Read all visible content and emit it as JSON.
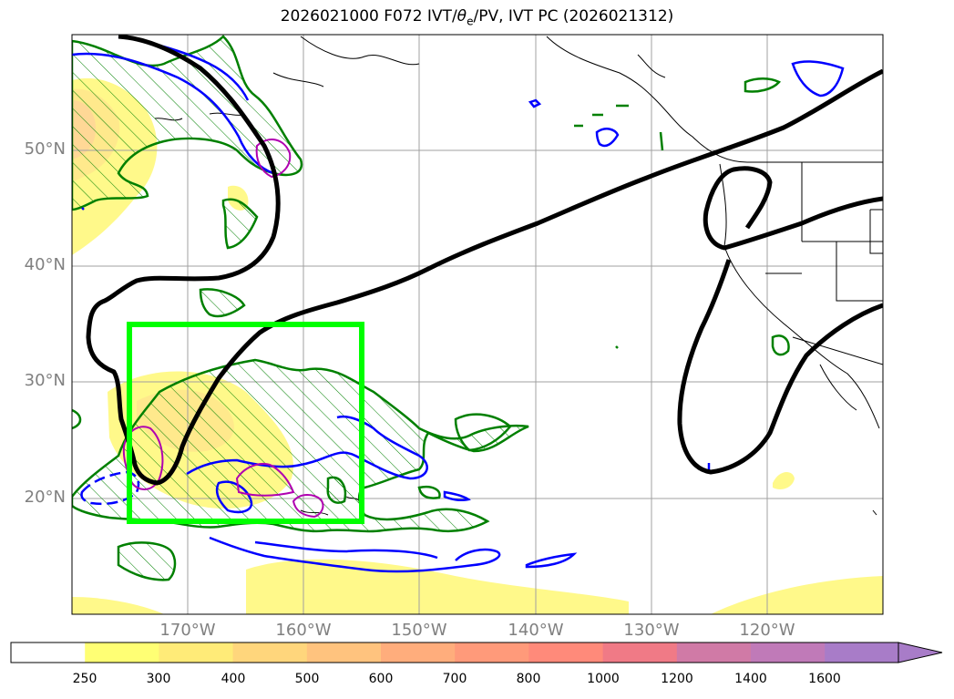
{
  "title": {
    "prefix": "2026021000 F072 IVT/",
    "theta": "θ",
    "theta_sub": "e",
    "suffix": "/PV, IVT PC (2026021312)"
  },
  "map": {
    "lat_labels": [
      "50°N",
      "40°N",
      "30°N",
      "20°N"
    ],
    "lon_labels": [
      "170°W",
      "160°W",
      "150°W",
      "140°W",
      "130°W",
      "120°W"
    ]
  },
  "legend": {
    "ivt_levels": [
      "250",
      "300",
      "400",
      "500",
      "600",
      "700",
      "800",
      "1000",
      "1200",
      "1400",
      "1600"
    ],
    "colors": [
      "#ffffff",
      "#ffff74",
      "#ffeb78",
      "#ffd67c",
      "#ffc37e",
      "#ffad7c",
      "#ff9a7a",
      "#ff8a7a",
      "#f07a86",
      "#d07aa6",
      "#c07ab8",
      "#a87cc8"
    ]
  },
  "colors": {
    "box": "#00ff00",
    "pc_contour": "#000000",
    "pv_contour": "#0000ff",
    "theta_contour": "#008000",
    "magenta_contour": "#b000b0"
  }
}
